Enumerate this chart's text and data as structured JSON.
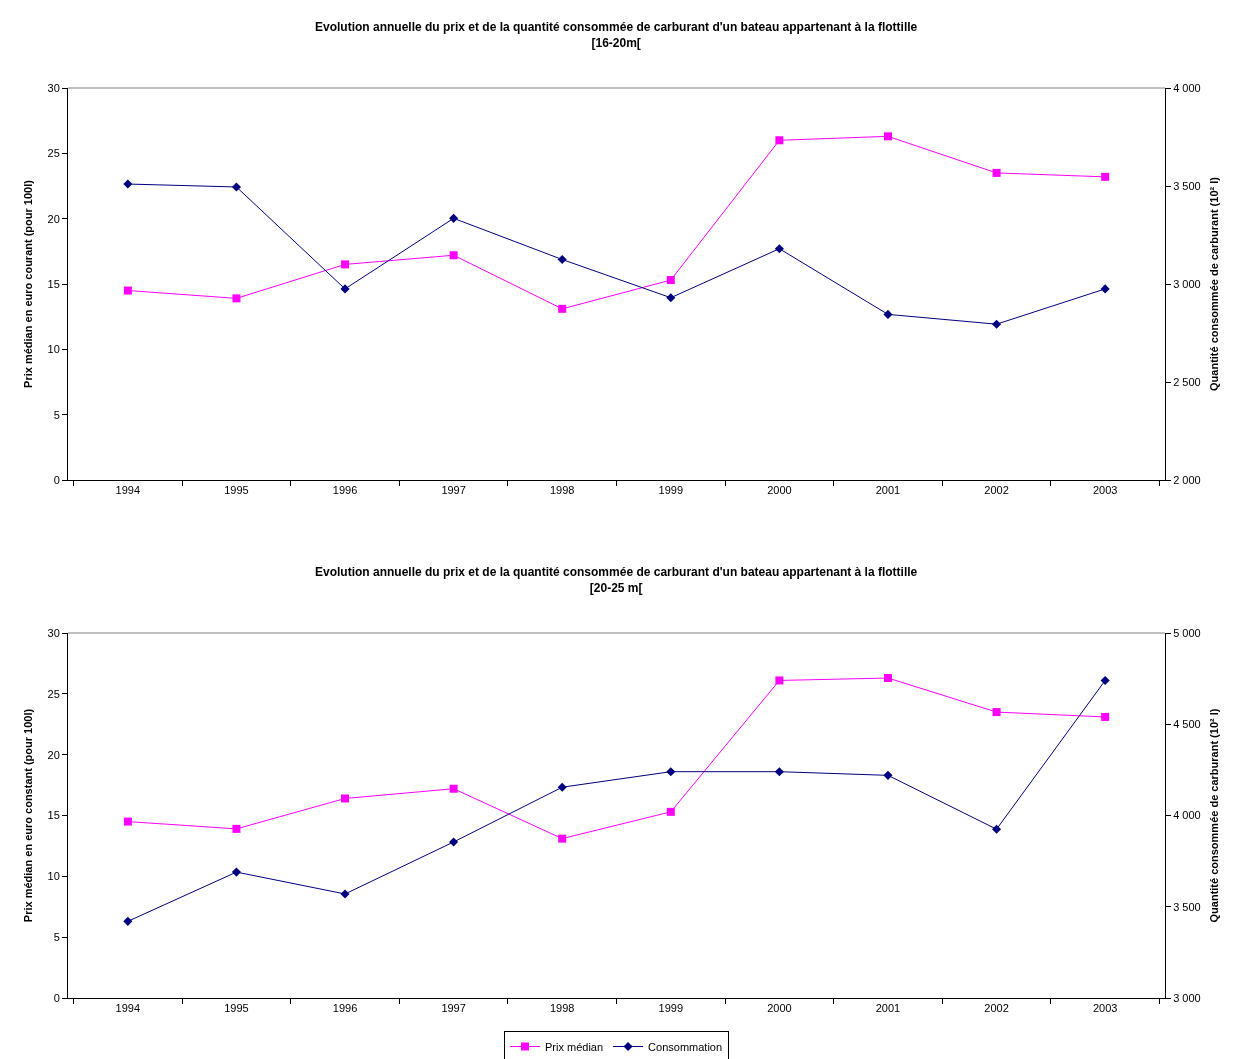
{
  "chart_data": [
    {
      "type": "line",
      "title": "Evolution annuelle du prix et de la quantité consommée de carburant d'un bateau appartenant à la flottille [16-20m[",
      "ylabel": "Prix médian en euro courant (pour 100l)",
      "y2label": "Quantité consommée de carburant (10² l)",
      "categories": [
        "1994",
        "1995",
        "1996",
        "1997",
        "1998",
        "1999",
        "2000",
        "2001",
        "2002",
        "2003"
      ],
      "ylim": [
        0,
        30
      ],
      "yticks": [
        0,
        5,
        10,
        15,
        20,
        25,
        30
      ],
      "y2lim": [
        2000,
        4000
      ],
      "y2ticks": [
        {
          "value": 2000,
          "label": "2 000"
        },
        {
          "value": 2500,
          "label": "2 500"
        },
        {
          "value": 3000,
          "label": "3 000"
        },
        {
          "value": 3500,
          "label": "3 500"
        },
        {
          "value": 4000,
          "label": "4 000"
        }
      ],
      "series": [
        {
          "color": "#ff00ff",
          "marker": "square",
          "values": [
            14.5,
            13.9,
            16.5,
            17.2,
            13.1,
            15.3,
            26.0,
            26.3,
            23.5,
            23.2
          ]
        },
        {
          "color": "#000080",
          "marker": "diamond",
          "axis": "y2",
          "values": [
            3510,
            3495,
            2975,
            3335,
            3125,
            2930,
            3180,
            2845,
            2795,
            2975
          ]
        }
      ],
      "line_style": "solid",
      "grid": false,
      "legend": false
    },
    {
      "type": "line",
      "title": "Evolution annuelle du prix et de la quantité consommée de carburant d'un bateau appartenant à la flottille [20-25 m[",
      "ylabel": "Prix médian en euro constant (pour 100l)",
      "y2label": "Quantité consommée de carburant (10² l)",
      "categories": [
        "1994",
        "1995",
        "1996",
        "1997",
        "1998",
        "1999",
        "2000",
        "2001",
        "2002",
        "2003"
      ],
      "ylim": [
        0,
        30
      ],
      "yticks": [
        0,
        5,
        10,
        15,
        20,
        25,
        30
      ],
      "y2lim": [
        3000,
        5000
      ],
      "y2ticks": [
        {
          "value": 3000,
          "label": "3 000"
        },
        {
          "value": 3500,
          "label": "3 500"
        },
        {
          "value": 4000,
          "label": "4 000"
        },
        {
          "value": 4500,
          "label": "4 500"
        },
        {
          "value": 5000,
          "label": "5 000"
        }
      ],
      "series": [
        {
          "name": "Prix médian",
          "color": "#ff00ff",
          "marker": "square",
          "values": [
            14.5,
            13.9,
            16.4,
            17.2,
            13.1,
            15.3,
            26.1,
            26.3,
            23.5,
            23.1
          ]
        },
        {
          "name": "Consommation",
          "color": "#000080",
          "marker": "diamond",
          "axis": "y2",
          "values": [
            3420,
            3690,
            3570,
            3855,
            4155,
            4240,
            4240,
            4220,
            3925,
            4740
          ]
        }
      ],
      "line_style": "solid",
      "grid": false,
      "legend": "bottom"
    }
  ]
}
